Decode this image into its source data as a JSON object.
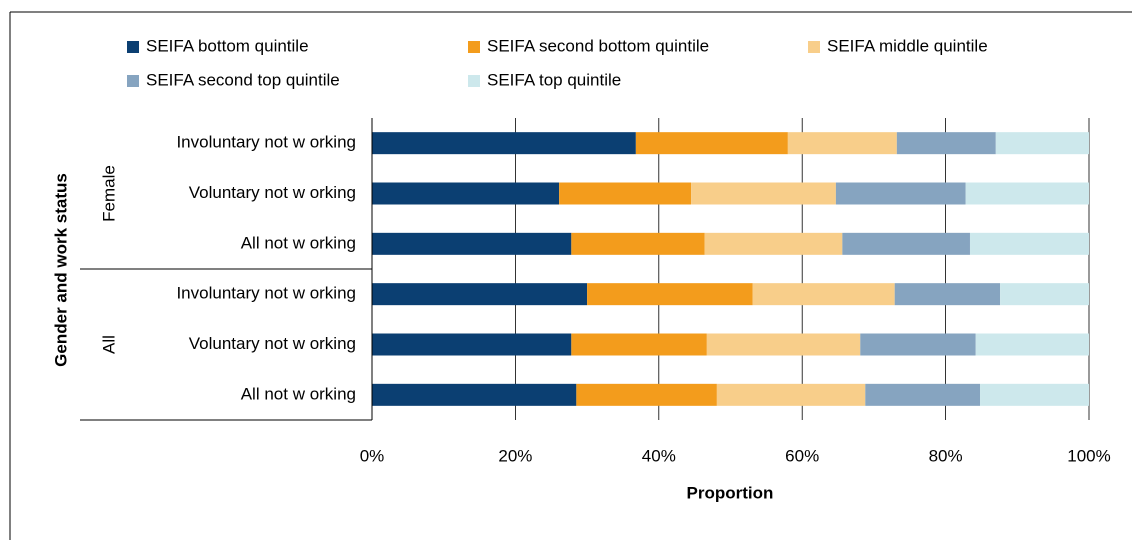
{
  "chart_data": {
    "type": "stacked_barh",
    "categories": [
      "Involuntary not w orking",
      "Voluntary not w orking",
      "All not w orking",
      "Involuntary not w orking",
      "Voluntary not w orking",
      "All not w orking"
    ],
    "groups": [
      "Female",
      "All"
    ],
    "ylabel": "Gender and work status",
    "xlabel": "Proportion",
    "series": [
      {
        "name": "SEIFA bottom quintile",
        "color": "#0b3f72",
        "values": [
          36.8,
          26.1,
          27.8,
          30.0,
          27.8,
          28.5
        ]
      },
      {
        "name": "SEIFA second bottom quintile",
        "color": "#f39c1c",
        "values": [
          21.2,
          18.4,
          18.6,
          23.1,
          18.9,
          19.6
        ]
      },
      {
        "name": "SEIFA middle quintile",
        "color": "#f8ce8a",
        "values": [
          15.2,
          20.2,
          19.2,
          19.8,
          21.4,
          20.7
        ]
      },
      {
        "name": "SEIFA second top quintile",
        "color": "#86a4c0",
        "values": [
          13.8,
          18.1,
          17.8,
          14.7,
          16.1,
          16.0
        ]
      },
      {
        "name": "SEIFA top quintile",
        "color": "#cde8ec",
        "values": [
          13.0,
          17.2,
          16.6,
          12.4,
          15.8,
          15.2
        ]
      }
    ],
    "xlim": [
      0,
      100
    ],
    "xticks": [
      {
        "value": 0,
        "label": "0%"
      },
      {
        "value": 20,
        "label": "20%"
      },
      {
        "value": 40,
        "label": "40%"
      },
      {
        "value": 60,
        "label": "60%"
      },
      {
        "value": 80,
        "label": "80%"
      },
      {
        "value": 100,
        "label": "100%"
      }
    ],
    "grid": true
  }
}
